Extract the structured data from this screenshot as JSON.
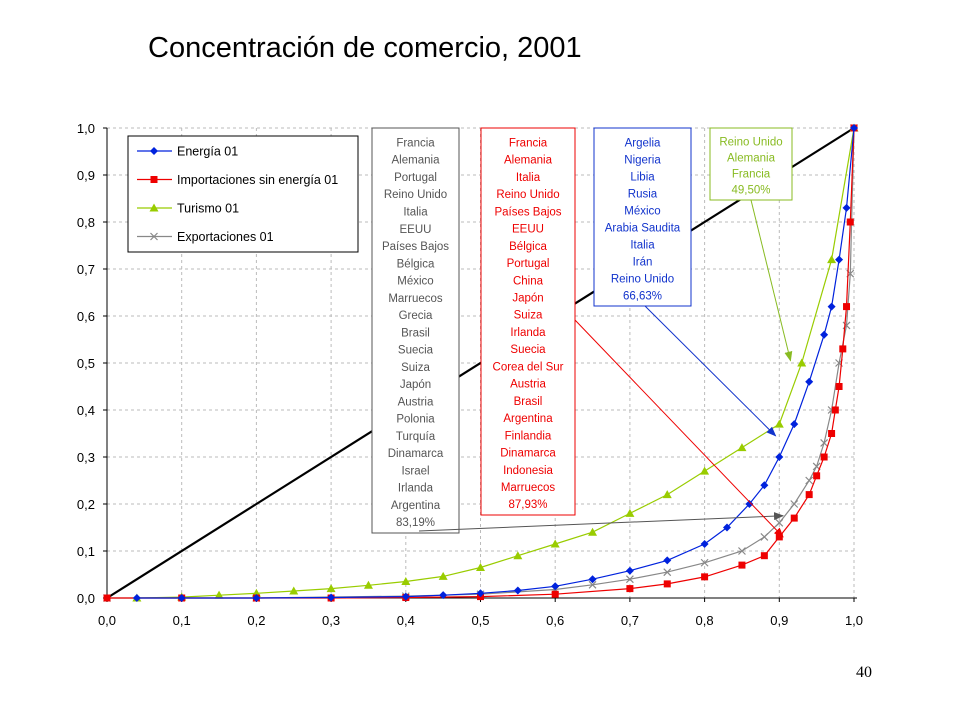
{
  "slide": {
    "title": "Concentración de comercio, 2001",
    "page_number": "40"
  },
  "colors": {
    "energia": "#0022dd",
    "importaciones": "#ee0000",
    "turismo": "#99cc00",
    "exportaciones": "#888888",
    "diagonal": "#000000",
    "box_gray": "#555555",
    "box_red": "#ee0000",
    "box_blue": "#1133cc",
    "box_green": "#88bb22"
  },
  "chart_data": {
    "type": "line",
    "title": "",
    "xlabel": "",
    "ylabel": "",
    "xlim": [
      0,
      1
    ],
    "ylim": [
      0,
      1
    ],
    "x_ticks": [
      "0,0",
      "0,1",
      "0,2",
      "0,3",
      "0,4",
      "0,5",
      "0,6",
      "0,7",
      "0,8",
      "0,9",
      "1,0"
    ],
    "y_ticks": [
      "0,0",
      "0,1",
      "0,2",
      "0,3",
      "0,4",
      "0,5",
      "0,6",
      "0,7",
      "0,8",
      "0,9",
      "1,0"
    ],
    "grid": true,
    "legend_position": "top-left",
    "diagonal": [
      [
        0,
        0
      ],
      [
        1,
        1
      ]
    ],
    "series": [
      {
        "name": "Energía 01",
        "key": "energia",
        "marker": "diamond",
        "points": [
          [
            0.04,
            0.0
          ],
          [
            0.1,
            0.0
          ],
          [
            0.2,
            0.0
          ],
          [
            0.3,
            0.001
          ],
          [
            0.4,
            0.003
          ],
          [
            0.45,
            0.006
          ],
          [
            0.5,
            0.01
          ],
          [
            0.55,
            0.016
          ],
          [
            0.6,
            0.025
          ],
          [
            0.65,
            0.04
          ],
          [
            0.7,
            0.058
          ],
          [
            0.75,
            0.08
          ],
          [
            0.8,
            0.115
          ],
          [
            0.83,
            0.15
          ],
          [
            0.86,
            0.2
          ],
          [
            0.88,
            0.24
          ],
          [
            0.9,
            0.3
          ],
          [
            0.92,
            0.37
          ],
          [
            0.94,
            0.46
          ],
          [
            0.96,
            0.56
          ],
          [
            0.97,
            0.62
          ],
          [
            0.98,
            0.72
          ],
          [
            0.99,
            0.83
          ],
          [
            1.0,
            1.0
          ]
        ]
      },
      {
        "name": "Importaciones sin energía 01",
        "key": "importaciones",
        "marker": "square",
        "points": [
          [
            0.0,
            0.0
          ],
          [
            0.1,
            0.0
          ],
          [
            0.2,
            0.0
          ],
          [
            0.3,
            0.0
          ],
          [
            0.4,
            0.001
          ],
          [
            0.5,
            0.003
          ],
          [
            0.6,
            0.008
          ],
          [
            0.7,
            0.02
          ],
          [
            0.75,
            0.03
          ],
          [
            0.8,
            0.045
          ],
          [
            0.85,
            0.07
          ],
          [
            0.88,
            0.09
          ],
          [
            0.9,
            0.13
          ],
          [
            0.92,
            0.17
          ],
          [
            0.94,
            0.22
          ],
          [
            0.95,
            0.26
          ],
          [
            0.96,
            0.3
          ],
          [
            0.97,
            0.35
          ],
          [
            0.975,
            0.4
          ],
          [
            0.98,
            0.45
          ],
          [
            0.985,
            0.53
          ],
          [
            0.99,
            0.62
          ],
          [
            0.995,
            0.8
          ],
          [
            1.0,
            1.0
          ]
        ]
      },
      {
        "name": "Turismo 01",
        "key": "turismo",
        "marker": "triangle",
        "points": [
          [
            0.04,
            0.0
          ],
          [
            0.1,
            0.002
          ],
          [
            0.15,
            0.006
          ],
          [
            0.2,
            0.01
          ],
          [
            0.25,
            0.015
          ],
          [
            0.3,
            0.02
          ],
          [
            0.35,
            0.027
          ],
          [
            0.4,
            0.035
          ],
          [
            0.45,
            0.046
          ],
          [
            0.5,
            0.065
          ],
          [
            0.55,
            0.09
          ],
          [
            0.6,
            0.115
          ],
          [
            0.65,
            0.14
          ],
          [
            0.7,
            0.18
          ],
          [
            0.75,
            0.22
          ],
          [
            0.8,
            0.27
          ],
          [
            0.85,
            0.32
          ],
          [
            0.9,
            0.37
          ],
          [
            0.93,
            0.5
          ],
          [
            0.97,
            0.72
          ],
          [
            1.0,
            1.0
          ]
        ]
      },
      {
        "name": "Exportaciones 01",
        "key": "exportaciones",
        "marker": "x",
        "points": [
          [
            0.0,
            0.0
          ],
          [
            0.2,
            0.0
          ],
          [
            0.4,
            0.004
          ],
          [
            0.5,
            0.008
          ],
          [
            0.6,
            0.018
          ],
          [
            0.65,
            0.028
          ],
          [
            0.7,
            0.04
          ],
          [
            0.75,
            0.055
          ],
          [
            0.8,
            0.075
          ],
          [
            0.85,
            0.1
          ],
          [
            0.88,
            0.13
          ],
          [
            0.9,
            0.16
          ],
          [
            0.92,
            0.2
          ],
          [
            0.94,
            0.25
          ],
          [
            0.95,
            0.28
          ],
          [
            0.96,
            0.33
          ],
          [
            0.97,
            0.4
          ],
          [
            0.98,
            0.5
          ],
          [
            0.99,
            0.58
          ],
          [
            0.995,
            0.69
          ],
          [
            1.0,
            1.0
          ]
        ]
      }
    ],
    "annotations": [
      {
        "key": "gray",
        "series": "Exportaciones 01",
        "target": [
          0.905,
          0.175
        ],
        "lines": [
          "Francia",
          "Alemania",
          "Portugal",
          "Reino Unido",
          "Italia",
          "EEUU",
          "Países Bajos",
          "Bélgica",
          "México",
          "Marruecos",
          "Grecia",
          "Brasil",
          "Suecia",
          "Suiza",
          "Japón",
          "Austria",
          "Polonia",
          "Turquía",
          "Dinamarca",
          "Israel",
          "Irlanda",
          "Argentina",
          "83,19%"
        ]
      },
      {
        "key": "red",
        "series": "Importaciones sin energía 01",
        "target": [
          0.905,
          0.13
        ],
        "lines": [
          "Francia",
          "Alemania",
          "Italia",
          "Reino Unido",
          "Países Bajos",
          "EEUU",
          "Bélgica",
          "Portugal",
          "China",
          "Japón",
          "Suiza",
          "Irlanda",
          "Suecia",
          "Corea del Sur",
          "Austria",
          "Brasil",
          "Argentina",
          "Finlandia",
          "Dinamarca",
          "Indonesia",
          "Marruecos",
          "87,93%"
        ]
      },
      {
        "key": "blue",
        "series": "Energía 01",
        "target": [
          0.895,
          0.345
        ],
        "lines": [
          "Argelia",
          "Nigeria",
          "Libia",
          "Rusia",
          "México",
          "Arabia Saudita",
          "Italia",
          "Irán",
          "Reino Unido",
          "66,63%"
        ]
      },
      {
        "key": "green",
        "series": "Turismo 01",
        "target": [
          0.915,
          0.505
        ],
        "lines": [
          "Reino Unido",
          "Alemania",
          "Francia",
          "49,50%"
        ]
      }
    ]
  }
}
